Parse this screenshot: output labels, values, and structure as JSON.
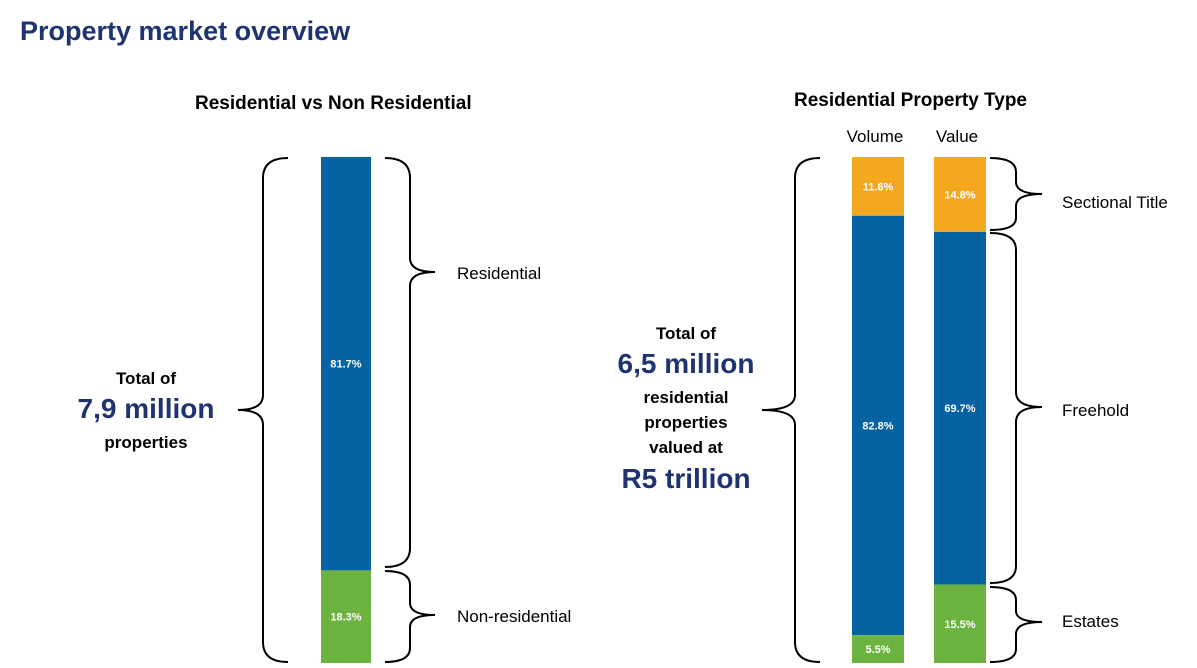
{
  "page_title": "Property market overview",
  "colors": {
    "residential": "#0563a3",
    "non_residential": "#6db33f",
    "sectional_title": "#f3a81f",
    "freehold": "#0563a3",
    "estates": "#6db33f",
    "title_blue": "#1f3370"
  },
  "left_total": {
    "line1": "Total of",
    "big": "7,9 million",
    "line2": "properties"
  },
  "right_total": {
    "line1": "Total of",
    "big1": "6,5 million",
    "line2": "residential",
    "line3": "properties",
    "line4": "valued at",
    "big2": "R5 trillion"
  },
  "chart_data": [
    {
      "type": "bar",
      "title": "Residential vs Non Residential",
      "stacked": true,
      "unit": "%",
      "series": [
        {
          "name": "Residential",
          "values": [
            81.7
          ],
          "labels": [
            "81.7%"
          ]
        },
        {
          "name": "Non-residential",
          "values": [
            18.3
          ],
          "labels": [
            "18.3%"
          ]
        }
      ]
    },
    {
      "type": "bar",
      "title": "Residential Property Type",
      "stacked": true,
      "unit": "%",
      "categories": [
        "Volume",
        "Value"
      ],
      "series": [
        {
          "name": "Sectional Title",
          "values": [
            11.6,
            14.8
          ],
          "labels": [
            "11.6%",
            "14.8%"
          ]
        },
        {
          "name": "Freehold",
          "values": [
            82.8,
            69.7
          ],
          "labels": [
            "82.8%",
            "69.7%"
          ]
        },
        {
          "name": "Estates",
          "values": [
            5.5,
            15.5
          ],
          "labels": [
            "5.5%",
            "15.5%"
          ]
        }
      ]
    }
  ]
}
